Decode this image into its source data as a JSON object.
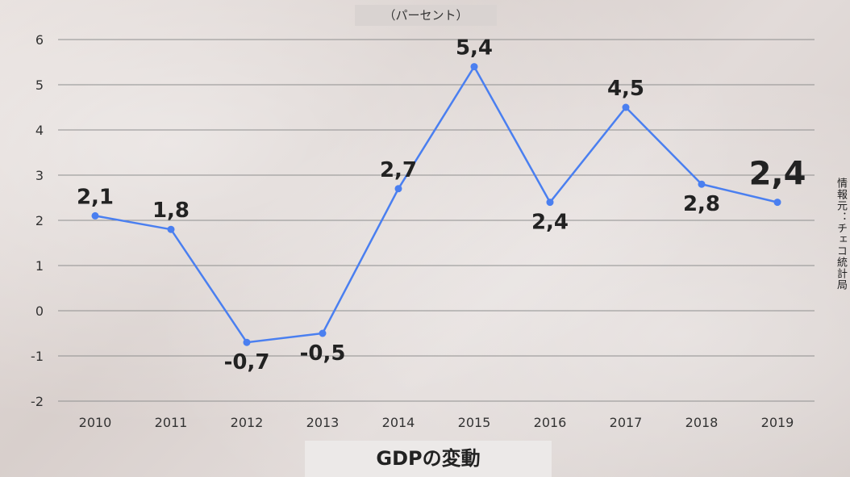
{
  "unit_label": "（パーセント）",
  "title": "GDPの変動",
  "source": "情報元：チェコ統計局",
  "chart_data": {
    "type": "line",
    "title": "GDPの変動",
    "ylabel": "（パーセント）",
    "xlabel": "",
    "x": [
      "2010",
      "2011",
      "2012",
      "2013",
      "2014",
      "2015",
      "2016",
      "2017",
      "2018",
      "2019"
    ],
    "ylim": [
      -2,
      6
    ],
    "yticks": [
      "-2",
      "-1",
      "0",
      "1",
      "2",
      "3",
      "4",
      "5",
      "6"
    ],
    "series": [
      {
        "values": [
          2.1,
          1.8,
          -0.7,
          -0.5,
          2.7,
          5.4,
          2.4,
          4.5,
          2.8,
          2.4
        ],
        "labels": [
          "2,1",
          "1,8",
          "-0,7",
          "-0,5",
          "2,7",
          "5,4",
          "2,4",
          "4,5",
          "2,8",
          "2,4"
        ],
        "label_side": [
          "above",
          "above",
          "below",
          "below",
          "above",
          "above",
          "below",
          "above",
          "below",
          "above"
        ],
        "highlight": [
          false,
          false,
          false,
          false,
          false,
          false,
          false,
          false,
          false,
          true
        ],
        "color": "#4a7ff0"
      }
    ],
    "grid": true,
    "gridline_color": "#8f8f8f"
  }
}
